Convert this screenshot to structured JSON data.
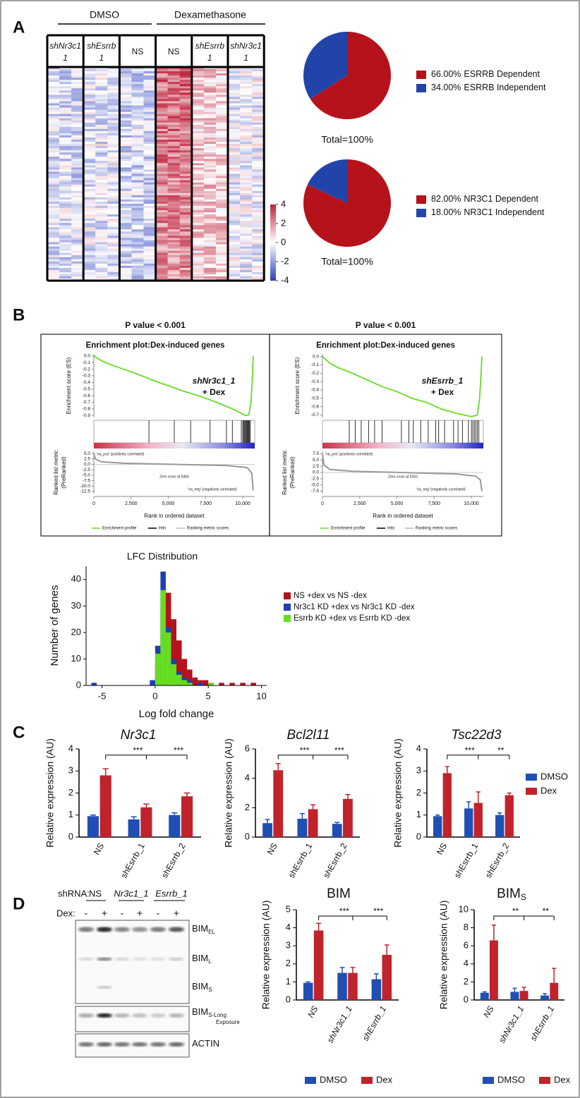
{
  "panel_labels": [
    "A",
    "B",
    "C",
    "D"
  ],
  "heatmap": {
    "groups": [
      "DMSO",
      "Dexamethasone"
    ],
    "columns": [
      [
        "shNr3c1",
        "1"
      ],
      [
        "shEsrrb",
        "1"
      ],
      [
        "NS"
      ],
      [
        "NS"
      ],
      [
        "shEsrrb",
        "1"
      ],
      [
        "shNr3c1",
        "1"
      ]
    ],
    "colorbar": {
      "lim": [
        -4,
        4
      ],
      "ticks": [
        4,
        2,
        0,
        -2,
        -4
      ]
    }
  },
  "chart_data": [
    {
      "type": "pie",
      "categories": [
        "ESRRB Dependent",
        "ESRRB Independent"
      ],
      "values": [
        66,
        34
      ],
      "value_labels": [
        "66.00%",
        "34.00%"
      ],
      "colors": [
        "#b5121b",
        "#2244aa"
      ],
      "total_label": "Total=100%"
    },
    {
      "type": "pie",
      "categories": [
        "NR3C1 Dependent",
        "NR3C1 Independent"
      ],
      "values": [
        82,
        18
      ],
      "value_labels": [
        "82.00%",
        "18.00%"
      ],
      "colors": [
        "#b5121b",
        "#2244aa"
      ],
      "total_label": "Total=100%"
    },
    {
      "type": "gsea",
      "p_value_label": "P value < 0.001",
      "title": "Enrichment plot:Dex-induced genes",
      "annotation": [
        "shNr3c1_1",
        "+ Dex"
      ],
      "xlim": [
        0,
        10800
      ],
      "xticks": [
        0,
        {
          "value": 2500,
          "label": "2,500"
        },
        {
          "value": 5000,
          "label": "5,000"
        },
        {
          "value": 7500,
          "label": "7,500"
        },
        {
          "value": 10000,
          "label": "10,000"
        }
      ],
      "xlabel": "Rank in ordered dataset",
      "es_ylabel": "Enrichment score (ES)",
      "es_ylim": [
        -0.93,
        0.03
      ],
      "es_yticks": [
        {
          "value": 0,
          "label": "0.0"
        },
        -0.1,
        -0.2,
        -0.3,
        -0.4,
        -0.5,
        -0.6,
        -0.7,
        -0.8,
        -0.9
      ],
      "x": [
        0,
        500,
        1000,
        2000,
        3000,
        4000,
        5000,
        6000,
        7000,
        8000,
        9000,
        9500,
        10000,
        10200,
        10400,
        10550,
        10650,
        10700
      ],
      "es": [
        0,
        -0.07,
        -0.12,
        -0.2,
        -0.28,
        -0.37,
        -0.45,
        -0.53,
        -0.6,
        -0.68,
        -0.77,
        -0.82,
        -0.88,
        -0.9,
        -0.89,
        -0.7,
        -0.3,
        0
      ],
      "es_color": "#66dd22",
      "hits": [
        3700,
        5400,
        6500,
        7800,
        8900,
        9300,
        9900,
        10000,
        10050,
        10100,
        10150,
        10200,
        10250,
        10300,
        10350,
        10400,
        10450,
        10500
      ],
      "metric_ylabel": [
        "Ranked list metric",
        "(PreRanked)"
      ],
      "metric_ylim": [
        -13.5,
        6
      ],
      "metric_yticks": [
        {
          "value": 5,
          "label": "5.0"
        },
        2.5,
        {
          "value": 0,
          "label": "0.0"
        },
        -2.5,
        {
          "value": -5,
          "label": "-5.0"
        },
        -7.5,
        {
          "value": -10,
          "label": "-10.0"
        },
        -12.5
      ],
      "metric_x": [
        0,
        100,
        500,
        2000,
        5456,
        9000,
        10300,
        10600,
        10700
      ],
      "metric": [
        5,
        2.5,
        1.2,
        0.5,
        0,
        -0.6,
        -1.5,
        -4,
        -12
      ],
      "pos_label": "'na_pos' (positively correlated)",
      "neg_label": "'na_neg' (negatively correlated)",
      "zero_cross_label": "Zero cross at 5456",
      "legend": [
        "Enrichment profile",
        "Hits",
        "Ranking metric scores"
      ]
    },
    {
      "type": "gsea",
      "p_value_label": "P value < 0.001",
      "title": "Enrichment plot:Dex-induced genes",
      "annotation": [
        "shEsrrb_1",
        "+ Dex"
      ],
      "xlim": [
        0,
        10800
      ],
      "xticks": [
        0,
        {
          "value": 2500,
          "label": "2,500"
        },
        {
          "value": 5000,
          "label": "5,000"
        },
        {
          "value": 7500,
          "label": "7,500"
        },
        {
          "value": 10000,
          "label": "10,000"
        }
      ],
      "xlabel": "Rank in ordered dataset",
      "es_ylabel": "Enrichment score (ES)",
      "es_ylim": [
        -0.73,
        0.03
      ],
      "es_yticks": [
        {
          "value": 0,
          "label": "0.0"
        },
        -0.1,
        -0.2,
        -0.3,
        -0.4,
        -0.5,
        -0.6,
        -0.7
      ],
      "x": [
        0,
        500,
        1000,
        2000,
        3000,
        4000,
        5000,
        6000,
        7000,
        8000,
        9000,
        9500,
        10000,
        10200,
        10400,
        10550,
        10650,
        10700
      ],
      "es": [
        0,
        -0.08,
        -0.13,
        -0.2,
        -0.28,
        -0.36,
        -0.42,
        -0.5,
        -0.55,
        -0.63,
        -0.68,
        -0.7,
        -0.72,
        -0.71,
        -0.7,
        -0.5,
        -0.2,
        0
      ],
      "es_color": "#66dd22",
      "hits": [
        1800,
        2200,
        2600,
        3100,
        3500,
        4000,
        5300,
        5800,
        6100,
        6600,
        7100,
        7600,
        7800,
        8200,
        8800,
        9100,
        9400,
        9800,
        10000,
        10100,
        10200,
        10300,
        10400,
        10500
      ],
      "metric_ylabel": [
        "Ranked list metric",
        "(PreRanked)"
      ],
      "metric_ylim": [
        -8.5,
        8.5
      ],
      "metric_yticks": [
        7.5,
        {
          "value": 5,
          "label": "5.0"
        },
        2.5,
        {
          "value": 0,
          "label": "0.0"
        },
        -2.5,
        {
          "value": -5,
          "label": "-5.0"
        },
        -7.5
      ],
      "metric_x": [
        0,
        100,
        500,
        2000,
        5263,
        9000,
        10300,
        10600,
        10700
      ],
      "metric": [
        7.5,
        3,
        1.2,
        0.5,
        0,
        -0.6,
        -1.5,
        -3,
        -7.5
      ],
      "pos_label": "'na_pos' (positively correlated)",
      "neg_label": "'na_neg' (negatively correlated)",
      "zero_cross_label": "Zero cross at 5263",
      "legend": [
        "Enrichment profile",
        "Hits",
        "Ranking metric scores"
      ]
    },
    {
      "type": "histogram",
      "title": "LFC Distribution",
      "xlabel": "Log fold change",
      "ylabel": "Number of genes",
      "bins": [
        -6,
        -5.5,
        -5,
        -4.5,
        -4,
        -3.5,
        -3,
        -2.5,
        -2,
        -1.5,
        -1,
        -0.5,
        0,
        0.5,
        1,
        1.5,
        2,
        2.5,
        3,
        3.5,
        4,
        4.5,
        5,
        5.5,
        6,
        6.5,
        7,
        7.5,
        8,
        8.5,
        9,
        9.5,
        10
      ],
      "series": [
        {
          "name": "NS +dex vs NS -dex",
          "color": "#b5121b",
          "values": [
            0,
            0,
            0,
            0,
            0,
            0,
            0,
            0,
            0,
            0,
            0,
            0,
            8,
            30,
            35,
            25,
            17,
            10,
            6,
            3,
            2,
            2,
            1,
            0,
            1,
            0,
            1,
            0,
            1,
            0,
            1,
            0
          ]
        },
        {
          "name": "Nr3c1 KD +dex vs Nr3c1 KD -dex",
          "color": "#1f3fb0",
          "values": [
            1,
            0,
            0,
            0,
            0,
            0,
            0,
            0,
            0,
            0,
            0,
            2,
            15,
            43,
            22,
            10,
            5,
            3,
            2,
            0,
            1,
            0,
            0,
            0,
            0,
            0,
            0,
            0,
            0,
            0,
            0,
            0
          ]
        },
        {
          "name": "Esrrb KD +dex vs Esrrb KD -dex",
          "color": "#66dd22",
          "values": [
            0,
            0,
            0,
            0,
            0,
            0,
            0,
            0,
            0,
            0,
            0,
            0,
            12,
            36,
            20,
            8,
            4,
            2,
            1,
            0,
            0,
            0,
            1,
            0,
            0,
            0,
            0,
            0,
            0,
            0,
            0,
            0
          ]
        }
      ],
      "xlim": [
        -6.5,
        10.5
      ],
      "xticks": [
        -5,
        0,
        5,
        10
      ],
      "ylim": [
        0,
        45
      ],
      "yticks": [
        0,
        10,
        20,
        30,
        40
      ]
    },
    {
      "type": "bar",
      "title": "Nr3c1",
      "title_italic": true,
      "ylabel": "Relative expression (AU)",
      "categories": [
        "NS",
        "shEsrrb_1",
        "shEsrrb_2"
      ],
      "series": [
        {
          "name": "DMSO",
          "color": "#1f4fb5",
          "values": [
            0.95,
            0.8,
            1.0
          ],
          "errors": [
            0.05,
            0.12,
            0.1
          ]
        },
        {
          "name": "Dex",
          "color": "#c0232b",
          "values": [
            2.8,
            1.35,
            1.85
          ],
          "errors": [
            0.3,
            0.15,
            0.15
          ]
        }
      ],
      "ylim": [
        0,
        4
      ],
      "yticks": [
        0,
        1,
        2,
        3,
        4
      ],
      "significance": [
        "***",
        "***"
      ]
    },
    {
      "type": "bar",
      "title": "Bcl2l11",
      "title_italic": true,
      "ylabel": "Relative expression (AU)",
      "categories": [
        "NS",
        "shEsrrb_1",
        "shEsrrb_2"
      ],
      "series": [
        {
          "name": "DMSO",
          "color": "#1f4fb5",
          "values": [
            0.95,
            1.25,
            0.9
          ],
          "errors": [
            0.25,
            0.35,
            0.1
          ]
        },
        {
          "name": "Dex",
          "color": "#c0232b",
          "values": [
            4.55,
            1.9,
            2.6
          ],
          "errors": [
            0.45,
            0.3,
            0.3
          ]
        }
      ],
      "ylim": [
        0,
        6
      ],
      "yticks": [
        0,
        2,
        4,
        6
      ],
      "significance": [
        "***",
        "***"
      ]
    },
    {
      "type": "bar",
      "title": "Tsc22d3",
      "title_italic": true,
      "ylabel": "Relative expression (AU)",
      "categories": [
        "NS",
        "shEsrrb_1",
        "shEsrrb_2"
      ],
      "series": [
        {
          "name": "DMSO",
          "color": "#1f4fb5",
          "values": [
            0.95,
            1.3,
            1.0
          ],
          "errors": [
            0.05,
            0.3,
            0.1
          ]
        },
        {
          "name": "Dex",
          "color": "#c0232b",
          "values": [
            2.9,
            1.55,
            1.9
          ],
          "errors": [
            0.3,
            0.5,
            0.1
          ]
        }
      ],
      "ylim": [
        0,
        4
      ],
      "yticks": [
        0,
        1,
        2,
        3,
        4
      ],
      "significance": [
        "***",
        "**"
      ],
      "legend": "right"
    },
    {
      "type": "bar",
      "title": "BIM",
      "ylabel": "Relative expression (AU)",
      "categories": [
        "NS",
        "shNr3c1_1",
        "shEsrrb_1"
      ],
      "category_italic": true,
      "series": [
        {
          "name": "DMSO",
          "color": "#1f4fb5",
          "values": [
            0.95,
            1.5,
            1.15
          ],
          "errors": [
            0.05,
            0.3,
            0.3
          ]
        },
        {
          "name": "Dex",
          "color": "#c0232b",
          "values": [
            3.85,
            1.5,
            2.5
          ],
          "errors": [
            0.4,
            0.3,
            0.55
          ]
        }
      ],
      "ylim": [
        0,
        5
      ],
      "yticks": [
        0,
        1,
        2,
        3,
        4,
        5
      ],
      "significance": [
        "***",
        "***"
      ],
      "legend": "bottom"
    },
    {
      "type": "bar",
      "title": "BIM",
      "title_subscript": "S",
      "ylabel": "Relative expression (AU)",
      "categories": [
        "NS",
        "shNr3c1_1",
        "shEsrrb_1"
      ],
      "category_italic": true,
      "series": [
        {
          "name": "DMSO",
          "color": "#1f4fb5",
          "values": [
            0.8,
            0.9,
            0.5
          ],
          "errors": [
            0.1,
            0.4,
            0.2
          ]
        },
        {
          "name": "Dex",
          "color": "#c0232b",
          "values": [
            6.6,
            1.0,
            1.9
          ],
          "errors": [
            1.7,
            0.4,
            1.6
          ]
        }
      ],
      "ylim": [
        0,
        10
      ],
      "yticks": [
        0,
        2,
        4,
        6,
        8,
        10
      ],
      "significance": [
        "**",
        "**"
      ],
      "legend": "bottom"
    }
  ],
  "blot": {
    "shrna_label": "shRNA:",
    "shrnas": [
      "NS",
      "Nr3c1_1",
      "Esrrb_1"
    ],
    "dex_label": "Dex:",
    "dex": [
      "-",
      "+",
      "-",
      "+",
      "-",
      "+"
    ],
    "bands": [
      {
        "name": "BIM",
        "sub": "EL"
      },
      {
        "name": "BIM",
        "sub": "L"
      },
      {
        "name": "BIM",
        "sub": "S"
      },
      {
        "name": "BIM",
        "sub": "S-Long",
        "sub2": "Exposure"
      },
      {
        "name": "ACTIN"
      }
    ]
  }
}
